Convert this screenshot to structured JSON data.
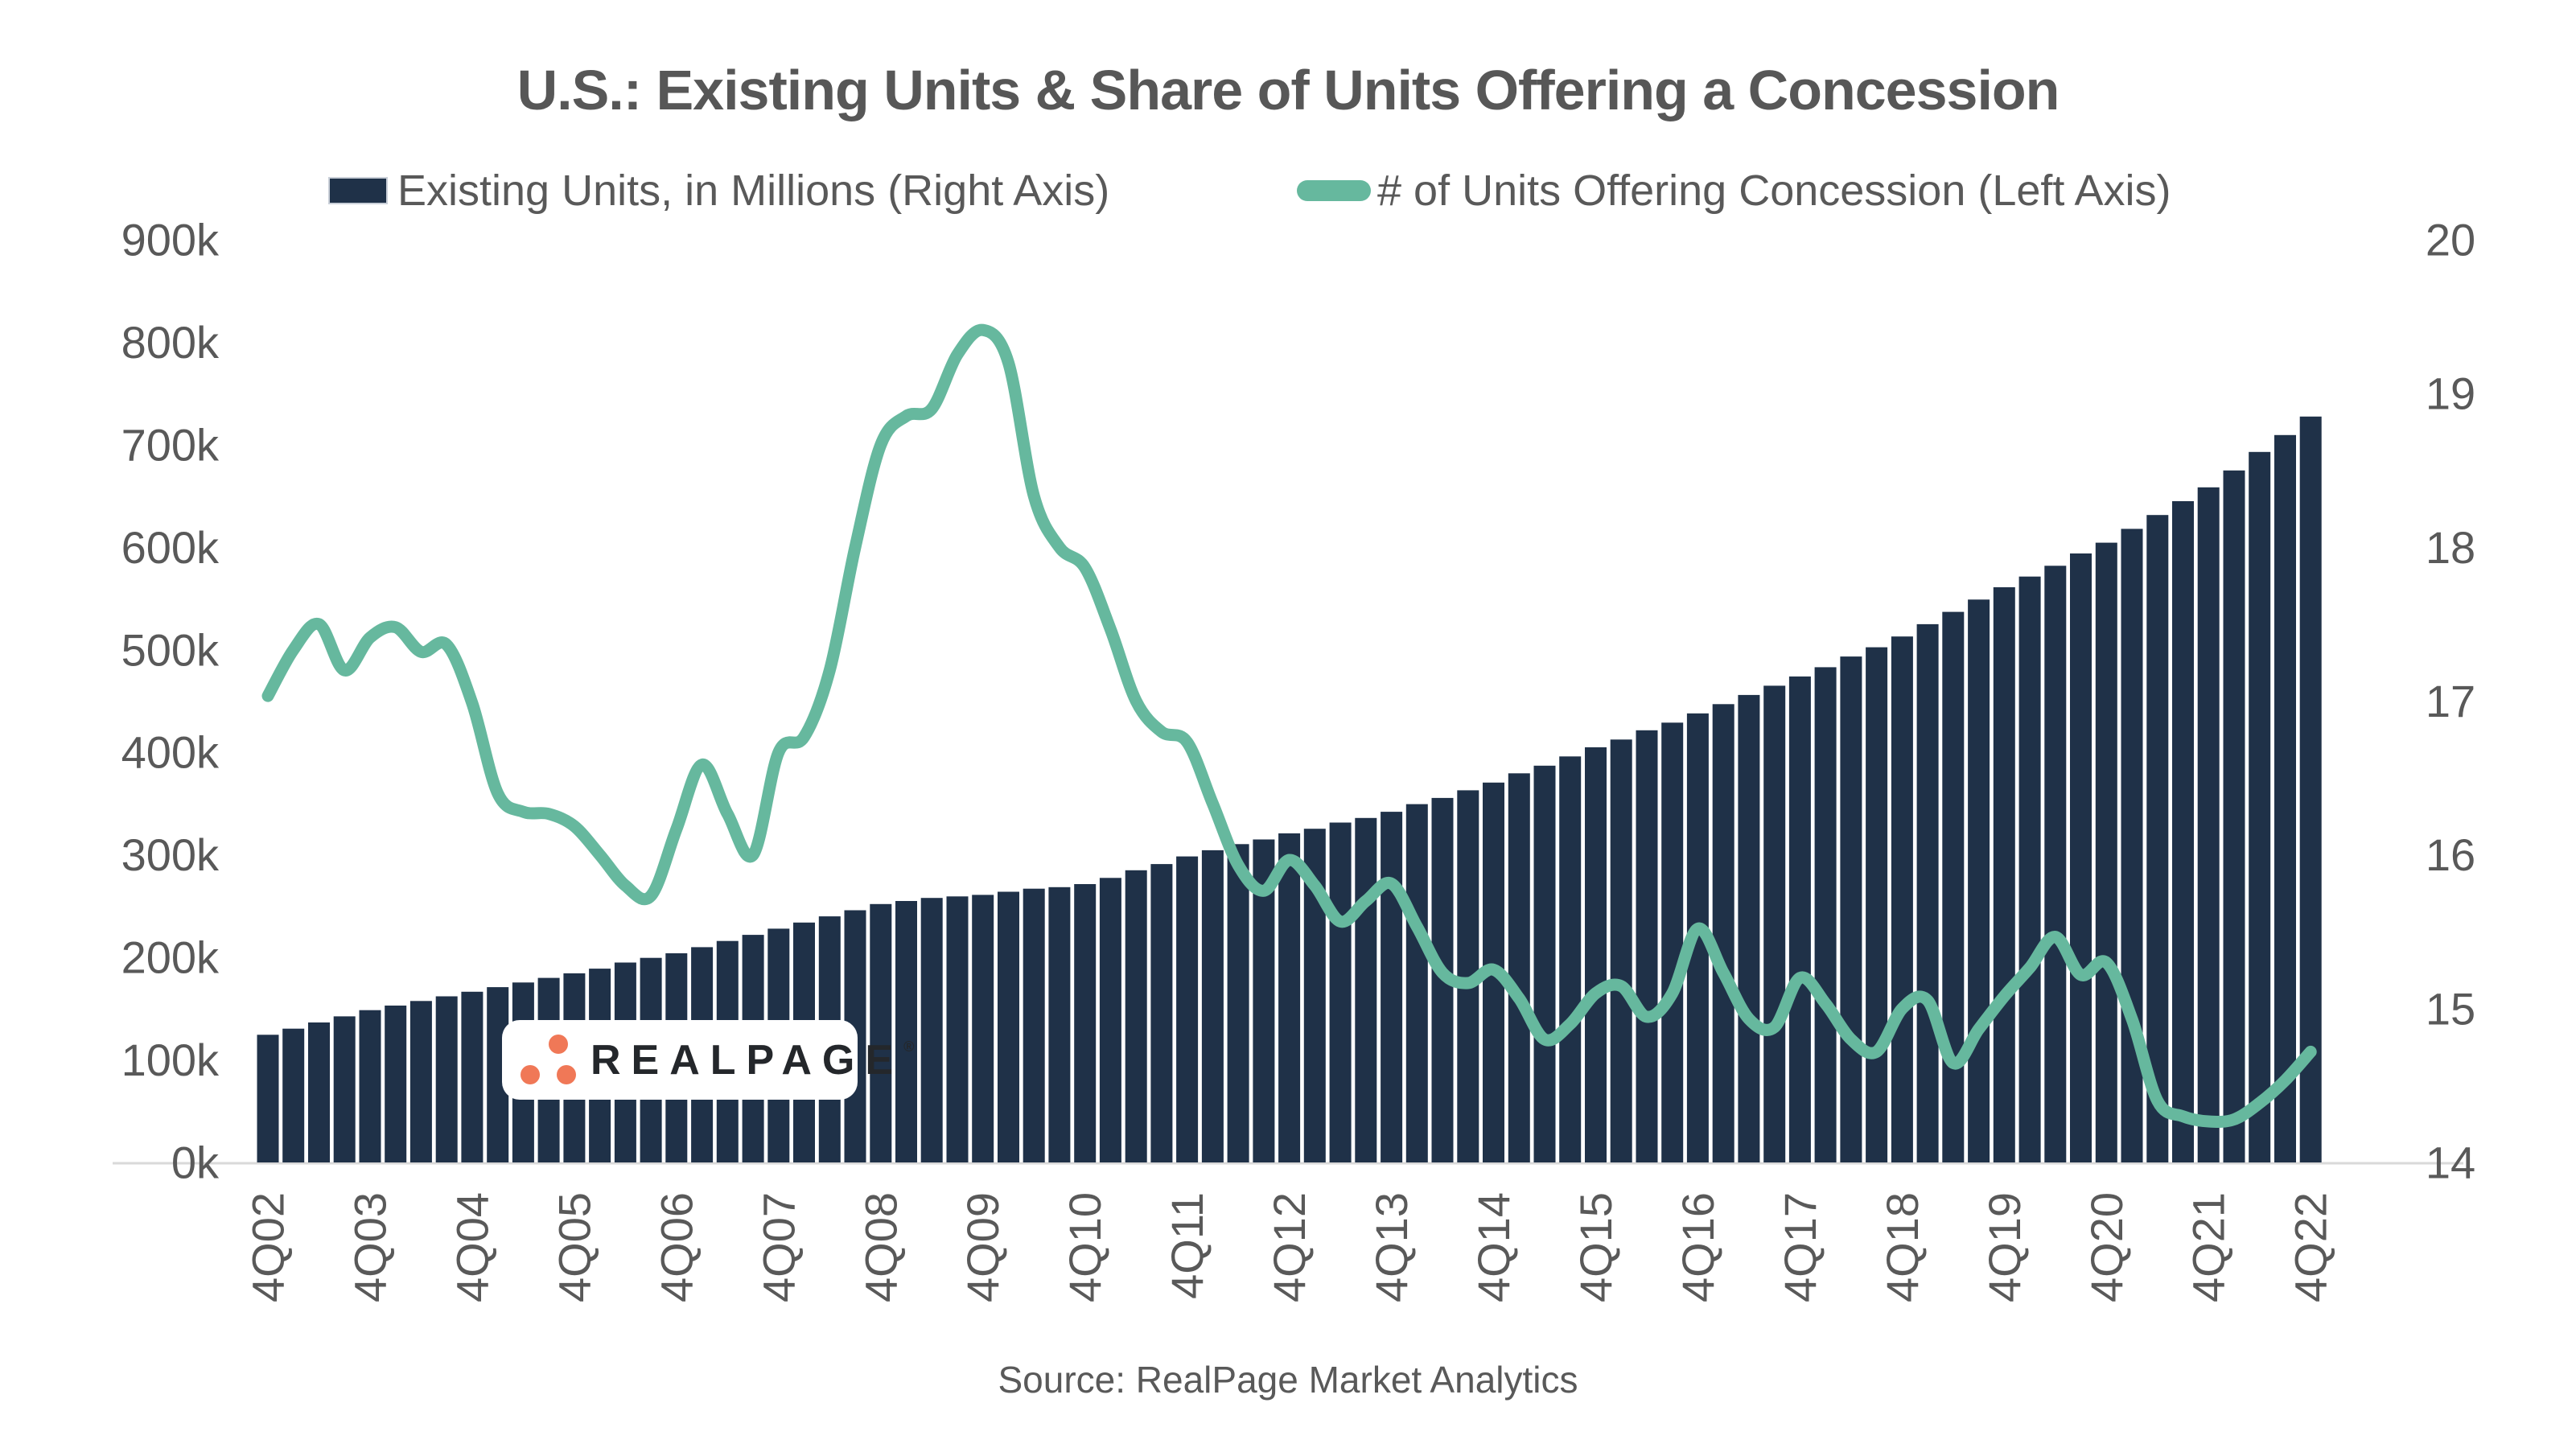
{
  "title": "U.S.: Existing Units & Share of Units Offering a Concession",
  "legend": {
    "items": [
      {
        "label": "Existing Units, in Millions (Right Axis)",
        "marker": "bar-swatch",
        "color": "#1F3148"
      },
      {
        "label": "# of Units Offering Concession (Left Axis)",
        "marker": "line-swatch",
        "color": "#66B89E"
      }
    ]
  },
  "source": "Source: RealPage Market Analytics",
  "watermark": {
    "brand": "REALPAGE",
    "registered": "®"
  },
  "colors": {
    "bar": "#1F3148",
    "line": "#66B89E",
    "text": "#595959",
    "axis_line": "#D9D9D9",
    "background": "#FFFFFF",
    "logo_orange": "#F07857",
    "logo_text": "#24272B"
  },
  "left_axis": {
    "tick_labels": [
      "900k",
      "800k",
      "700k",
      "600k",
      "500k",
      "400k",
      "300k",
      "200k",
      "100k",
      "0k"
    ],
    "min": 0,
    "max": 900000,
    "unit": "units"
  },
  "right_axis": {
    "tick_labels": [
      "20",
      "19",
      "18",
      "17",
      "16",
      "15",
      "14"
    ],
    "min": 14,
    "max": 20,
    "unit": "millions"
  },
  "x_axis": {
    "tick_labels": [
      "4Q02",
      "4Q03",
      "4Q04",
      "4Q05",
      "4Q06",
      "4Q07",
      "4Q08",
      "4Q09",
      "4Q10",
      "4Q11",
      "4Q12",
      "4Q13",
      "4Q14",
      "4Q15",
      "4Q16",
      "4Q17",
      "4Q18",
      "4Q19",
      "4Q20",
      "4Q21",
      "4Q22"
    ],
    "labels_every_n_quarters": 4
  },
  "chart_data": {
    "type": "combo-bar-line",
    "frequency": "quarterly",
    "x_start": "4Q02",
    "x_end": "4Q22",
    "n_points": 81,
    "grid": false,
    "legend_position": "top",
    "left_ylim_thousands": [
      0,
      900
    ],
    "right_ylim_millions": [
      14,
      20
    ],
    "series": [
      {
        "name": "Existing Units, in Millions (Right Axis)",
        "type": "bar",
        "axis": "right",
        "color": "#1F3148",
        "unit": "millions of units",
        "values": [
          14.83,
          14.87,
          14.91,
          14.95,
          14.99,
          15.02,
          15.05,
          15.08,
          15.11,
          15.14,
          15.17,
          15.2,
          15.23,
          15.26,
          15.3,
          15.33,
          15.36,
          15.4,
          15.44,
          15.48,
          15.52,
          15.56,
          15.6,
          15.64,
          15.68,
          15.7,
          15.72,
          15.73,
          15.74,
          15.76,
          15.78,
          15.79,
          15.81,
          15.85,
          15.9,
          15.94,
          15.99,
          16.03,
          16.07,
          16.1,
          16.14,
          16.17,
          16.21,
          16.24,
          16.28,
          16.33,
          16.37,
          16.42,
          16.47,
          16.53,
          16.58,
          16.64,
          16.7,
          16.75,
          16.81,
          16.86,
          16.92,
          16.98,
          17.04,
          17.1,
          17.16,
          17.22,
          17.29,
          17.35,
          17.42,
          17.5,
          17.58,
          17.66,
          17.74,
          17.81,
          17.88,
          17.96,
          18.03,
          18.12,
          18.21,
          18.3,
          18.39,
          18.5,
          18.62,
          18.73,
          18.85
        ]
      },
      {
        "name": "# of Units Offering Concession (Left Axis)",
        "type": "line",
        "axis": "left",
        "color": "#66B89E",
        "unit": "thousands of units",
        "values": [
          455,
          500,
          525,
          480,
          512,
          522,
          498,
          505,
          448,
          360,
          342,
          340,
          328,
          300,
          270,
          260,
          325,
          388,
          340,
          300,
          400,
          415,
          480,
          600,
          700,
          728,
          735,
          788,
          812,
          780,
          650,
          600,
          580,
          520,
          450,
          420,
          410,
          350,
          290,
          265,
          295,
          270,
          235,
          255,
          272,
          230,
          185,
          175,
          188,
          160,
          120,
          135,
          165,
          172,
          142,
          165,
          228,
          185,
          140,
          132,
          180,
          155,
          120,
          108,
          150,
          158,
          97,
          130,
          162,
          190,
          220,
          183,
          195,
          140,
          60,
          45,
          40,
          42,
          58,
          80,
          108
        ]
      }
    ]
  }
}
